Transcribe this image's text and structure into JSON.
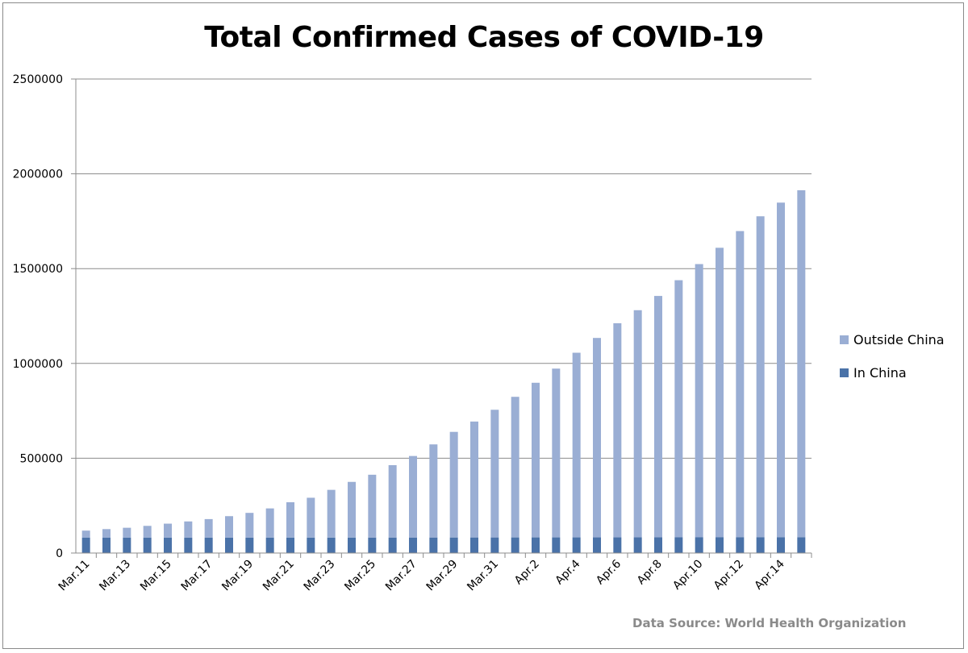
{
  "chart_data": {
    "type": "bar",
    "stacked": true,
    "title": "Total Confirmed Cases of COVID-19",
    "source": "Data Source: World Health Organization",
    "xlabel": "",
    "ylabel": "",
    "ylim": [
      0,
      2500000
    ],
    "yticks": [
      "0",
      "500000",
      "1000000",
      "1500000",
      "2000000",
      "2500000"
    ],
    "grid": true,
    "legend_position": "right",
    "categories": [
      "Mar.11",
      "Mar.12",
      "Mar.13",
      "Mar.14",
      "Mar.15",
      "Mar.16",
      "Mar.17",
      "Mar.18",
      "Mar.19",
      "Mar.20",
      "Mar.21",
      "Mar.22",
      "Mar.23",
      "Mar.24",
      "Mar.25",
      "Mar.26",
      "Mar.27",
      "Mar.28",
      "Mar.29",
      "Mar.30",
      "Mar.31",
      "Apr.1",
      "Apr.2",
      "Apr.3",
      "Apr.4",
      "Apr.5",
      "Apr.6",
      "Apr.7",
      "Apr.8",
      "Apr.9",
      "Apr.10",
      "Apr.11",
      "Apr.12",
      "Apr.13",
      "Apr.14",
      "Apr.15"
    ],
    "tick_labels": [
      "Mar.11",
      "Mar.13",
      "Mar.15",
      "Mar.17",
      "Mar.19",
      "Mar.21",
      "Mar.23",
      "Mar.25",
      "Mar.27",
      "Mar.29",
      "Mar.31",
      "Apr.2",
      "Apr.4",
      "Apr.6",
      "Apr.8",
      "Apr.10",
      "Apr.12",
      "Apr.14"
    ],
    "series": [
      {
        "name": "In China",
        "color": "#4a72a8",
        "values": [
          80900,
          80950,
          81000,
          81020,
          81050,
          81080,
          81100,
          81120,
          81150,
          81200,
          81250,
          81300,
          81400,
          81500,
          81700,
          81800,
          81900,
          82000,
          82100,
          82200,
          82300,
          82400,
          82500,
          82550,
          82600,
          82650,
          82700,
          82750,
          82800,
          82850,
          82900,
          82950,
          83000,
          83050,
          83100,
          83200
        ]
      },
      {
        "name": "Outside China",
        "color": "#9aaed4",
        "values": [
          37400,
          45300,
          52300,
          62300,
          73900,
          85600,
          97900,
          113400,
          130700,
          154200,
          186600,
          210300,
          251800,
          293700,
          331300,
          381600,
          429900,
          491000,
          556900,
          611300,
          673300,
          741500,
          815500,
          890100,
          973800,
          1051800,
          1129300,
          1198000,
          1273100,
          1356000,
          1441000,
          1527000,
          1615000,
          1693000,
          1765000,
          1830000
        ]
      }
    ]
  }
}
